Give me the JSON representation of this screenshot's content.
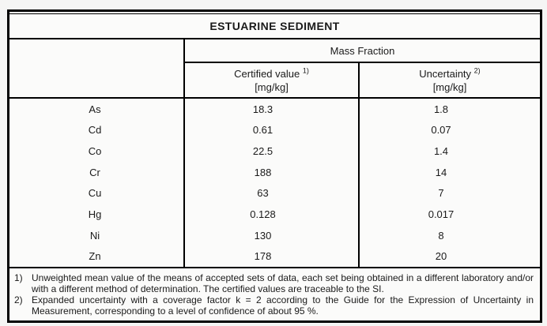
{
  "title": "ESTUARINE SEDIMENT",
  "table": {
    "group_header": "Mass Fraction",
    "columns": [
      {
        "label": "Certified value",
        "sup": "1)",
        "unit": "[mg/kg]"
      },
      {
        "label": "Uncertainty",
        "sup": "2)",
        "unit": "[mg/kg]"
      }
    ],
    "rows": [
      {
        "element": "As",
        "certified": "18.3",
        "uncertainty": "1.8"
      },
      {
        "element": "Cd",
        "certified": "0.61",
        "uncertainty": "0.07"
      },
      {
        "element": "Co",
        "certified": "22.5",
        "uncertainty": "1.4"
      },
      {
        "element": "Cr",
        "certified": "188",
        "uncertainty": "14"
      },
      {
        "element": "Cu",
        "certified": "63",
        "uncertainty": "7"
      },
      {
        "element": "Hg",
        "certified": "0.128",
        "uncertainty": "0.017"
      },
      {
        "element": "Ni",
        "certified": "130",
        "uncertainty": "8"
      },
      {
        "element": "Zn",
        "certified": "178",
        "uncertainty": "20"
      }
    ]
  },
  "footnotes": [
    {
      "marker": "1)",
      "text": "Unweighted mean value of the means of accepted sets of data, each set being obtained in a different laboratory and/or with a different method of determination. The certified values are traceable to the SI."
    },
    {
      "marker": "2)",
      "text": "Expanded uncertainty with a coverage factor k = 2 according to the Guide for the Expression of Uncertainty in Measurement, corresponding to a level of confidence of about 95 %."
    }
  ],
  "colors": {
    "border": "#000000",
    "page_background": "#f5f5f4",
    "table_background": "#fbfbfa",
    "text": "#1a1a1a"
  }
}
